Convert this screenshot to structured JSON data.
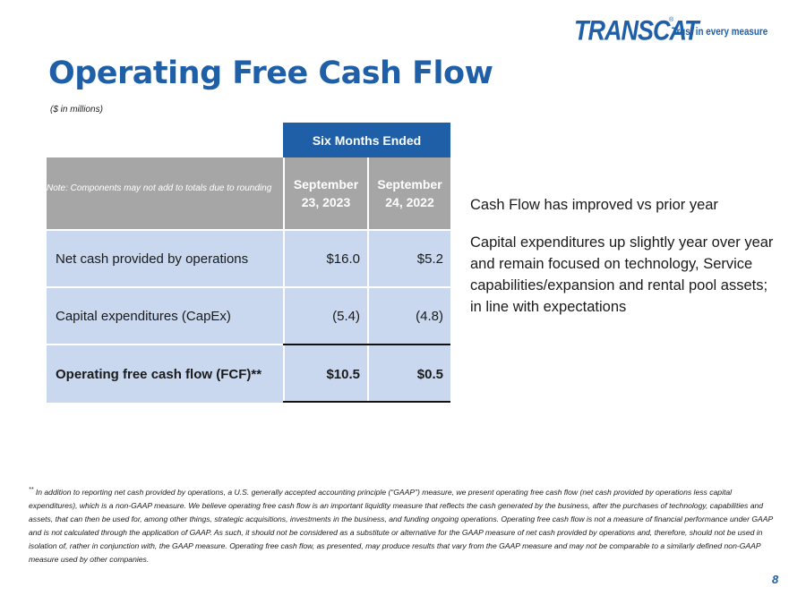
{
  "logo": {
    "brand": "TRANSCAT",
    "trademark": "®",
    "tagline": "Trust in every measure"
  },
  "title": "Operating Free Cash Flow",
  "units_note": "($ in millions)",
  "table": {
    "group_header": "Six Months Ended",
    "note": "Note:  Components may not add to totals due to rounding",
    "columns": [
      "September 23, 2023",
      "September 24, 2022"
    ],
    "rows": [
      {
        "label": "Net cash provided by operations",
        "values": [
          "$16.0",
          "$5.2"
        ]
      },
      {
        "label": "Capital expenditures (CapEx)",
        "values": [
          "(5.4)",
          "(4.8)"
        ]
      },
      {
        "label": "Operating free cash flow (FCF)**",
        "values": [
          "$10.5",
          "$0.5"
        ]
      }
    ]
  },
  "bullets": [
    "Cash Flow has improved vs prior year",
    "Capital expenditures up slightly year over year and remain focused on technology, Service capabilities/expansion and rental pool assets; in line with expectations"
  ],
  "footnote": {
    "marker": "**",
    "text": "In addition to reporting net cash provided by operations, a U.S. generally accepted accounting principle (“GAAP”) measure, we present operating free cash flow (net cash provided by operations less capital expenditures), which is a non-GAAP measure. We believe operating free cash flow is an important liquidity measure that reflects the cash generated by the business, after the purchases of technology, capabilities and assets, that can then be used for, among other things, strategic acquisitions, investments in the business, and funding ongoing operations. Operating free cash flow is not a measure of financial performance under GAAP and is not calculated through the application of GAAP. As such, it should not be considered as a substitute or alternative for the GAAP measure of net cash provided by operations and, therefore, should not be used in isolation of, rather in conjunction with, the GAAP measure. Operating free cash flow, as presented, may produce results that vary from the GAAP measure and may not be comparable to a similarly defined non-GAAP measure used by other companies."
  },
  "page_number": "8",
  "colors": {
    "brand_blue": "#1f5fa8",
    "header_gray": "#a6a6a6",
    "row_blue": "#c9d8ef"
  }
}
